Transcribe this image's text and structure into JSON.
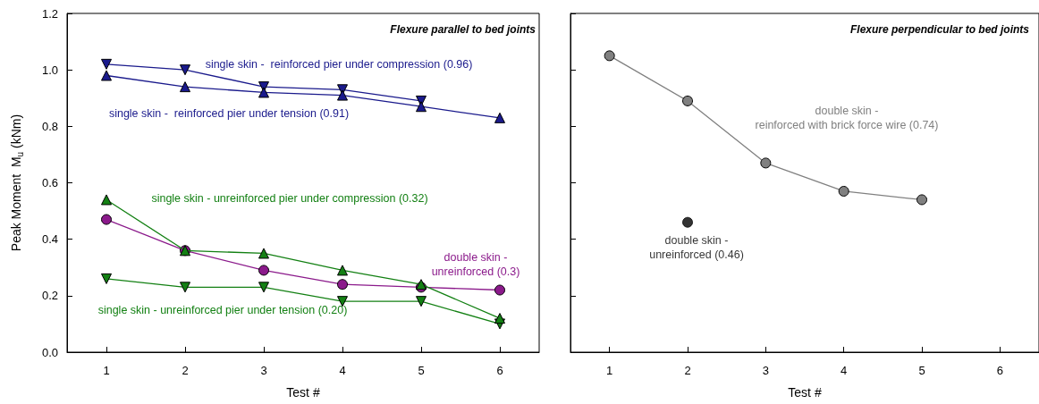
{
  "chart_data": [
    {
      "type": "line",
      "title": "Flexure parallel to bed joints",
      "xlabel": "Test #",
      "ylabel": "Peak Moment  M$_{u}$ (kNm)",
      "x": [
        1,
        2,
        3,
        4,
        5,
        6
      ],
      "series": [
        {
          "name": "single skin -  reinforced pier under compression (0.96)",
          "color": "#1a1a8c",
          "marker": "triangle",
          "values": [
            1.02,
            1.0,
            0.94,
            0.93,
            0.89,
            null
          ]
        },
        {
          "name": "single skin -  reinforced pier under tension (0.91)",
          "color": "#1a1a8c",
          "marker": "triangle",
          "values": [
            0.98,
            0.94,
            0.92,
            0.91,
            0.87,
            0.83
          ]
        },
        {
          "name": "single skin - unreinforced pier under compression (0.32)",
          "color": "#138013",
          "marker": "triangle",
          "values": [
            0.54,
            0.36,
            0.35,
            0.29,
            0.24,
            0.12
          ]
        },
        {
          "name": "single skin - unreinforced pier under tension (0.20)",
          "color": "#138013",
          "marker": "triangle",
          "values": [
            0.26,
            0.23,
            0.23,
            0.18,
            0.18,
            0.1
          ]
        },
        {
          "name": "double skin - unreinforced (0.3)",
          "color": "#8b1a8b",
          "marker": "circle",
          "values": [
            0.47,
            0.36,
            0.29,
            0.24,
            0.23,
            0.22
          ]
        }
      ],
      "xlim": [
        0.5,
        6.5
      ],
      "xticks": [
        1,
        2,
        3,
        4,
        5,
        6
      ],
      "ylim": [
        0,
        1.2
      ],
      "yticks": [
        {
          "value": 0,
          "label": "0.0"
        },
        0.2,
        0.4,
        0.6,
        0.8,
        {
          "value": 1,
          "label": "1.0"
        },
        1.2
      ],
      "grid": false,
      "legend": false,
      "line_style": "solid"
    },
    {
      "type": "line",
      "title": "Flexure perpendicular to bed joints",
      "xlabel": "Test #",
      "x": [
        1,
        2,
        3,
        4,
        5
      ],
      "series": [
        {
          "name": "double skin - reinforced with brick force wire (0.74)",
          "color": "#808080",
          "marker": "circle",
          "values": [
            1.05,
            0.89,
            0.67,
            0.57,
            0.54
          ]
        },
        {
          "name": "double skin - unreinforced (0.46)",
          "type": "scatter",
          "color": "#000000",
          "marker": "circle",
          "x": [
            2
          ],
          "values": [
            0.46
          ]
        }
      ],
      "xlim": [
        0.5,
        6.5
      ],
      "xticks": [
        1,
        2,
        3,
        4,
        5,
        6
      ],
      "ylim": [
        0,
        1.2
      ],
      "yticks": [
        0,
        0.2,
        0.4,
        0.6,
        0.8,
        1,
        1.2
      ],
      "tick_labels": "x",
      "grid": false,
      "legend": false,
      "line_style": "solid"
    }
  ]
}
